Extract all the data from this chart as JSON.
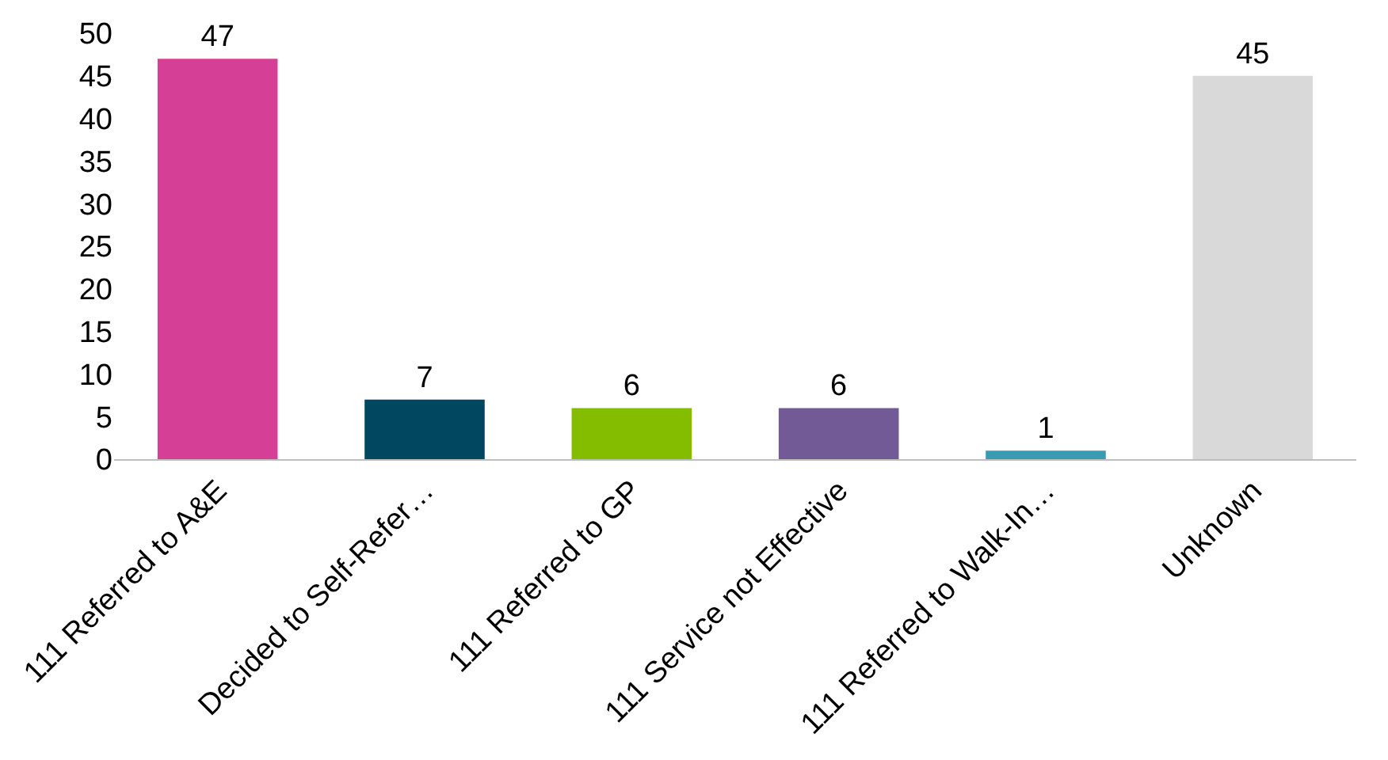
{
  "chart_data": {
    "type": "bar",
    "categories": [
      "111 Referred to A&E",
      "Decided to Self-Refer…",
      "111 Referred to GP",
      "111 Service not Effective",
      "111 Referred to Walk-In…",
      "Unknown"
    ],
    "values": [
      47,
      7,
      6,
      6,
      1,
      45
    ],
    "colors": [
      "#d63f96",
      "#00475f",
      "#84bd00",
      "#725a96",
      "#3a9bb0",
      "#d9d9d9"
    ],
    "ylim": [
      0,
      50
    ],
    "yticks": [
      0,
      5,
      10,
      15,
      20,
      25,
      30,
      35,
      40,
      45,
      50
    ],
    "data_labels": true,
    "grid": false
  }
}
